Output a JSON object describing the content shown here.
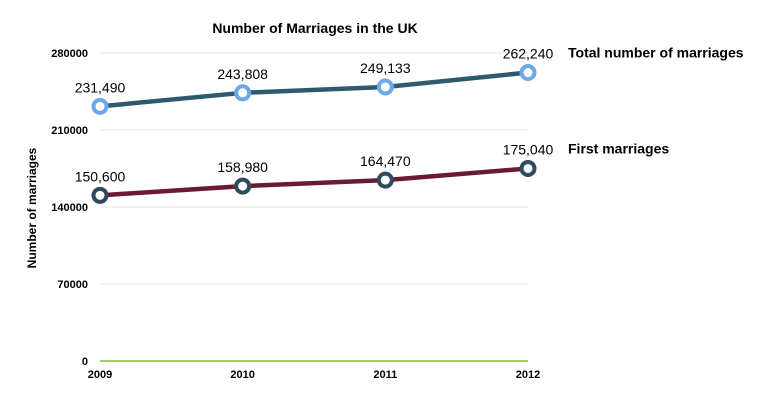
{
  "chart_data": {
    "type": "line",
    "title": "Number of Marriages in the UK",
    "xlabel": "",
    "ylabel": "Number of marriages",
    "categories": [
      "2009",
      "2010",
      "2011",
      "2012"
    ],
    "ylim": [
      0,
      280000
    ],
    "yticks": [
      "0",
      "70000",
      "140000",
      "210000",
      "280000"
    ],
    "grid": true,
    "legend": "right-end labels",
    "series": [
      {
        "name": "Total number of marriages",
        "values": [
          231490,
          243808,
          249133,
          262240
        ],
        "labels": [
          "231,490",
          "243,808",
          "249,133",
          "262,240"
        ],
        "line_color": "#2e5a6e",
        "marker_color": "#6ea8e8"
      },
      {
        "name": "First marriages",
        "values": [
          150600,
          158980,
          164470,
          175040
        ],
        "labels": [
          "150,600",
          "158,980",
          "164,470",
          "175,040"
        ],
        "line_color": "#6b1a33",
        "marker_color": "#2e4a5e"
      }
    ],
    "axis_color": "#7cc13a"
  }
}
